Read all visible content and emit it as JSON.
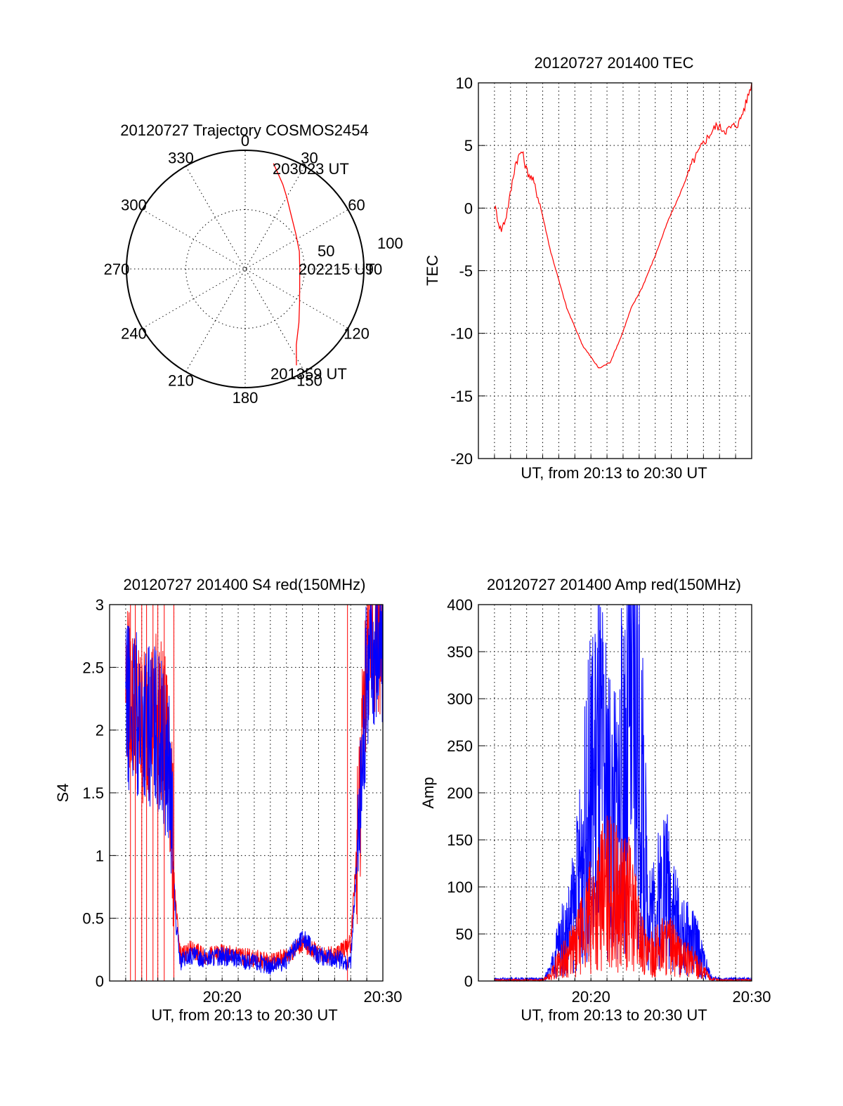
{
  "colors": {
    "red": "#ff0000",
    "blue": "#0000ff",
    "axis": "#000000"
  },
  "chart_data": [
    {
      "type": "polar",
      "title": "20120727 Trajectory COSMOS2454",
      "azimuth_labels": [
        "0",
        "30",
        "60",
        "90",
        "120",
        "150",
        "180",
        "210",
        "240",
        "270",
        "300",
        "330"
      ],
      "radius_labels": [
        "50",
        "100"
      ],
      "rlim": [
        0,
        100
      ],
      "grid": true,
      "annotations": [
        "203023 UT",
        "202215 UT",
        "201359 UT"
      ],
      "series": [
        {
          "color": "#ff0000",
          "azimuth": [
            15,
            19,
            24,
            30,
            40,
            55,
            72,
            90,
            107,
            122,
            135,
            146,
            152
          ],
          "zenith": [
            92,
            85,
            78,
            70,
            60,
            52,
            48,
            46,
            48,
            54,
            64,
            77,
            92
          ]
        }
      ]
    },
    {
      "type": "line",
      "title": "20120727 201400 TEC",
      "xlabel": "UT, from 20:13 to 20:30 UT",
      "ylabel": "TEC",
      "xlim": [
        0,
        17
      ],
      "ylim": [
        -20,
        10
      ],
      "yticks": [
        "10",
        "5",
        "0",
        "-5",
        "-10",
        "-15",
        "-20"
      ],
      "grid": true,
      "series": [
        {
          "color": "#ff0000",
          "x": [
            1,
            1.4,
            1.7,
            2,
            2.3,
            2.7,
            3,
            3.4,
            3.8,
            4.5,
            5.5,
            6.5,
            7.5,
            8.2,
            8.9,
            9.5,
            10.2,
            11,
            11.8,
            12.5,
            13.3,
            14,
            14.8,
            15.4,
            16.2,
            16.6,
            17
          ],
          "y": [
            0.2,
            -1.8,
            -0.8,
            1.2,
            3.6,
            4.6,
            3.0,
            2.2,
            0.5,
            -3.5,
            -8,
            -11,
            -12.8,
            -12.3,
            -10.2,
            -8,
            -6.3,
            -3.8,
            -1,
            1,
            3.6,
            5.2,
            6.6,
            6.2,
            6.8,
            8.2,
            10
          ]
        }
      ]
    },
    {
      "type": "line",
      "title": "20120727 201400 S4 red(150MHz)",
      "xlabel": "UT, from 20:13 to 20:30 UT",
      "ylabel": "S4",
      "xlim": [
        0,
        17
      ],
      "ylim": [
        0,
        3
      ],
      "yticks": [
        "3",
        "2.5",
        "2",
        "1.5",
        "1",
        "0.5",
        "0"
      ],
      "xticks": [
        "20:20",
        "20:30"
      ],
      "grid": true,
      "series": [
        {
          "color": "#ff0000",
          "x": [
            1,
            2,
            3,
            3.7,
            4.1,
            4.4,
            5,
            6,
            7,
            8,
            9,
            10,
            11,
            12,
            13,
            14,
            15,
            15.6,
            16,
            16.5,
            17
          ],
          "y": [
            2.4,
            2.0,
            2.2,
            1.8,
            0.6,
            0.2,
            0.25,
            0.2,
            0.22,
            0.2,
            0.18,
            0.15,
            0.2,
            0.3,
            0.22,
            0.2,
            0.3,
            1.5,
            2.6,
            2.8,
            2.7
          ]
        },
        {
          "color": "#0000ff",
          "x": [
            1,
            2,
            3,
            3.7,
            4.1,
            4.4,
            5,
            6,
            7,
            8,
            9,
            10,
            11,
            12,
            13,
            14,
            15,
            15.6,
            16,
            16.5,
            17
          ],
          "y": [
            2.2,
            2.1,
            2.0,
            1.7,
            0.5,
            0.15,
            0.2,
            0.18,
            0.2,
            0.17,
            0.15,
            0.12,
            0.16,
            0.35,
            0.2,
            0.18,
            0.15,
            1.4,
            2.5,
            2.7,
            2.6
          ]
        }
      ]
    },
    {
      "type": "line",
      "title": "20120727 201400 Amp red(150MHz)",
      "xlabel": "UT, from 20:13 to 20:30 UT",
      "ylabel": "Amp",
      "xlim": [
        0,
        17
      ],
      "ylim": [
        0,
        400
      ],
      "yticks": [
        "400",
        "350",
        "300",
        "250",
        "200",
        "150",
        "100",
        "50",
        "0"
      ],
      "xticks": [
        "20:20",
        "20:30"
      ],
      "grid": true,
      "series": [
        {
          "color": "#0000ff",
          "x": [
            1,
            3,
            4,
            4.5,
            5,
            5.5,
            6,
            6.5,
            7,
            7.5,
            8,
            8.5,
            9,
            9.5,
            10,
            10.5,
            11,
            11.5,
            12,
            12.5,
            13,
            13.5,
            14,
            14.5,
            15,
            16,
            17
          ],
          "y": [
            2,
            2,
            2,
            10,
            40,
            50,
            80,
            140,
            200,
            230,
            190,
            170,
            220,
            300,
            260,
            90,
            70,
            110,
            90,
            50,
            45,
            40,
            20,
            3,
            2,
            2,
            2
          ]
        },
        {
          "color": "#ff0000",
          "x": [
            1,
            3,
            4,
            4.5,
            5,
            5.5,
            6,
            6.5,
            7,
            7.5,
            8,
            8.5,
            9,
            9.5,
            10,
            10.5,
            11,
            11.5,
            12,
            12.5,
            13,
            13.5,
            14,
            14.5,
            15,
            16,
            17
          ],
          "y": [
            1,
            1,
            1,
            5,
            20,
            25,
            35,
            50,
            70,
            85,
            95,
            90,
            85,
            80,
            50,
            25,
            30,
            40,
            35,
            25,
            22,
            20,
            10,
            2,
            1,
            1,
            1
          ]
        }
      ]
    }
  ]
}
